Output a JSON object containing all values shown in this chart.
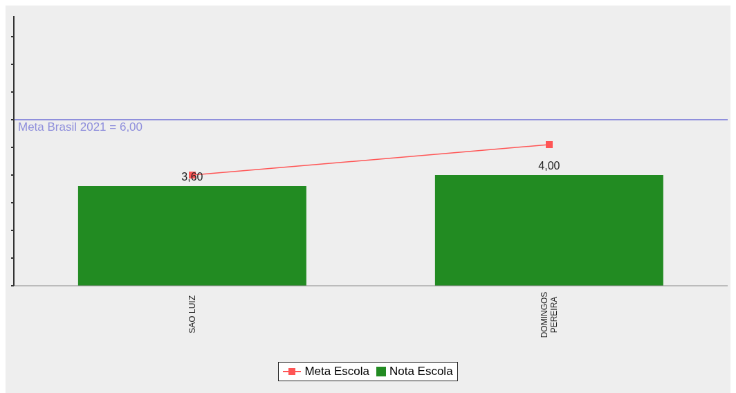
{
  "chart_data": {
    "type": "bar",
    "categories": [
      "SAO LUIZ",
      "DOMINGOS PEREIRA"
    ],
    "series": [
      {
        "name": "Meta Escola",
        "type": "line",
        "color": "#ff5555",
        "values": [
          4.0,
          5.1
        ],
        "marker": "square"
      },
      {
        "name": "Nota Escola",
        "color": "#228b22",
        "values": [
          3.6,
          4.0
        ],
        "value_labels": [
          "3,60",
          "4,00"
        ]
      }
    ],
    "ylim": [
      0,
      9.75
    ],
    "yticks": [
      {
        "value": 0,
        "label": null
      },
      {
        "value": 1,
        "label": null
      },
      {
        "value": 2,
        "label": null
      },
      {
        "value": 3,
        "label": null
      },
      {
        "value": 4,
        "label": null
      },
      {
        "value": 5,
        "label": null
      },
      {
        "value": 6,
        "label": null
      },
      {
        "value": 7,
        "label": null
      },
      {
        "value": 8,
        "label": null
      },
      {
        "value": 9,
        "label": null
      }
    ],
    "ref_lines": [
      {
        "axis": "y",
        "value": 6,
        "label": "Meta Brasil 2021 = 6,00",
        "color": "#8f8fdc"
      }
    ],
    "grid": false,
    "legend": "bottom",
    "tick_labels": "x"
  }
}
